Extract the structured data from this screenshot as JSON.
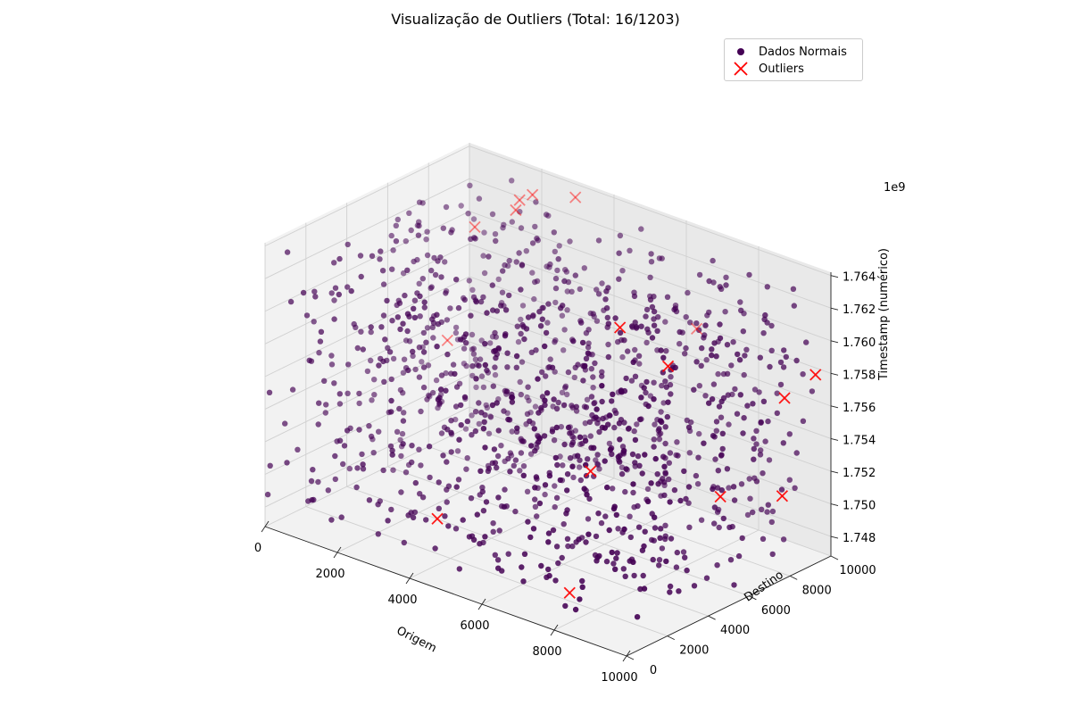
{
  "chart_data": {
    "type": "scatter3d",
    "title": "Visualização de Outliers (Total: 16/1203)",
    "xlabel": "Origem",
    "ylabel": "Destino",
    "zlabel": "Timestamp (numérico)",
    "z_offset_label": "1e9",
    "xlim": [
      0,
      10000
    ],
    "ylim": [
      0,
      10000
    ],
    "zlim": [
      1.7468,
      1.7642
    ],
    "x_ticks": [
      "0",
      "2000",
      "4000",
      "6000",
      "8000",
      "10000"
    ],
    "y_ticks": [
      "0",
      "2000",
      "4000",
      "6000",
      "8000",
      "10000"
    ],
    "z_ticks": [
      "1.748",
      "1.750",
      "1.752",
      "1.754",
      "1.756",
      "1.758",
      "1.760",
      "1.762",
      "1.764"
    ],
    "grid": true,
    "legend_position": "top-right",
    "series": [
      {
        "name": "Dados Normais",
        "marker": "circle",
        "color": "#440154",
        "count": 1187
      },
      {
        "name": "Outliers",
        "marker": "x",
        "color": "#ff0000",
        "points": [
          {
            "x": 8200,
            "y": 400,
            "z": 1.749
          },
          {
            "x": 4200,
            "y": 1000,
            "z": 1.75
          },
          {
            "x": 9600,
            "y": 5300,
            "z": 1.753
          },
          {
            "x": 6800,
            "y": 3900,
            "z": 1.7532
          },
          {
            "x": 9500,
            "y": 8500,
            "z": 1.751
          },
          {
            "x": 6200,
            "y": 6400,
            "z": 1.76
          },
          {
            "x": 7700,
            "y": 6100,
            "z": 1.759
          },
          {
            "x": 6400,
            "y": 9800,
            "z": 1.758
          },
          {
            "x": 1200,
            "y": 6800,
            "z": 1.755
          },
          {
            "x": 600,
            "y": 9200,
            "z": 1.76
          },
          {
            "x": 9800,
            "y": 9600,
            "z": 1.758
          },
          {
            "x": 3100,
            "y": 9700,
            "z": 1.7635
          },
          {
            "x": 2300,
            "y": 8200,
            "z": 1.763
          },
          {
            "x": 1800,
            "y": 9900,
            "z": 1.7625
          },
          {
            "x": 1500,
            "y": 9800,
            "z": 1.762
          },
          {
            "x": 9000,
            "y": 9500,
            "z": 1.756
          }
        ]
      }
    ]
  }
}
